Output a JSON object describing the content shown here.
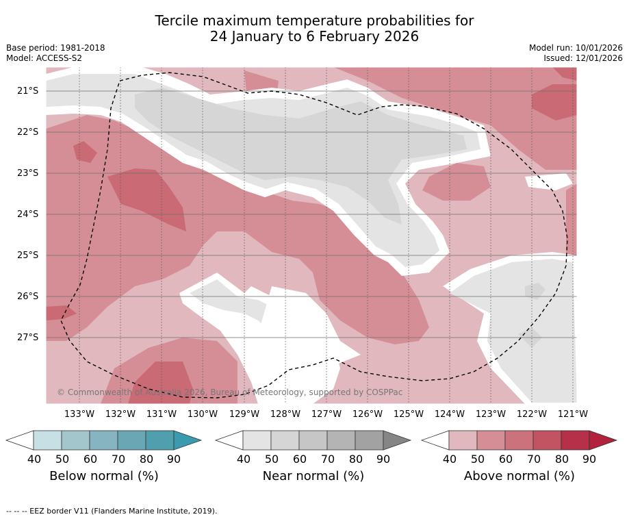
{
  "title": {
    "line1": "Tercile maximum temperature probabilities for",
    "line2": "24 January to 6 February 2026"
  },
  "meta": {
    "base_period": "Base period: 1981-2018",
    "model": "Model: ACCESS-S2",
    "model_run": "Model run: 10/01/2026",
    "issued": "Issued: 12/01/2026"
  },
  "map": {
    "lat_labels": [
      "21°S",
      "22°S",
      "23°S",
      "24°S",
      "25°S",
      "26°S",
      "27°S"
    ],
    "lon_labels": [
      "133°W",
      "132°W",
      "131°W",
      "130°W",
      "129°W",
      "128°W",
      "127°W",
      "126°W",
      "125°W",
      "124°W",
      "123°W",
      "122°W",
      "121°W"
    ],
    "copyright": "© Commonwealth of Australia 2026, Bureau of Meteorology, supported by COSPPac",
    "colors": {
      "above_40": "#e0b8bd",
      "above_50": "#d58e96",
      "above_60": "#c96a74",
      "near_40": "#e4e4e4",
      "near_50": "#d6d6d6",
      "eez": "#000000"
    }
  },
  "colorbars": [
    {
      "name": "below",
      "title": "Below normal (%)",
      "ticks": [
        "40",
        "50",
        "60",
        "70",
        "80",
        "90"
      ],
      "colors": [
        "#c7e0e5",
        "#a3c6cd",
        "#86b5c1",
        "#6aa7b5",
        "#4f9fae",
        "#3a9ab0"
      ]
    },
    {
      "name": "near",
      "title": "Near normal (%)",
      "ticks": [
        "40",
        "50",
        "60",
        "70",
        "80",
        "90"
      ],
      "colors": [
        "#e4e4e4",
        "#d5d5d5",
        "#c6c6c6",
        "#b4b4b4",
        "#a2a2a2",
        "#858585"
      ]
    },
    {
      "name": "above",
      "title": "Above normal (%)",
      "ticks": [
        "40",
        "50",
        "60",
        "70",
        "80",
        "90"
      ],
      "colors": [
        "#e0b8bd",
        "#d58e96",
        "#cb727c",
        "#c25462",
        "#b6304a",
        "#b3223c"
      ]
    }
  ],
  "footer": "--  --  -- EEZ border V11 (Flanders Marine Institute, 2019)."
}
